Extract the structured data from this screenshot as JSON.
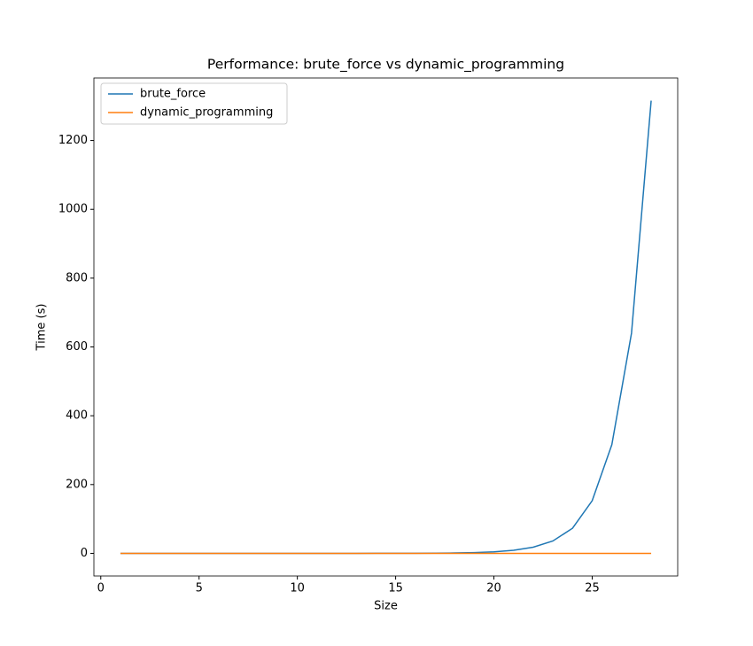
{
  "chart_data": {
    "type": "line",
    "title": "Performance: brute_force vs dynamic_programming",
    "xlabel": "Size",
    "ylabel": "Time (s)",
    "x": [
      1,
      2,
      3,
      4,
      5,
      6,
      7,
      8,
      9,
      10,
      11,
      12,
      13,
      14,
      15,
      16,
      17,
      18,
      19,
      20,
      21,
      22,
      23,
      24,
      25,
      26,
      27,
      28
    ],
    "series": [
      {
        "name": "brute_force",
        "color": "#1f77b4",
        "values": [
          0,
          0,
          0,
          0,
          0,
          0,
          0,
          0,
          0,
          0,
          0.01,
          0.02,
          0.03,
          0.07,
          0.14,
          0.3,
          0.5,
          1.1,
          2.2,
          4.4,
          9,
          18,
          36,
          73,
          153,
          316,
          640,
          1316
        ]
      },
      {
        "name": "dynamic_programming",
        "color": "#ff7f0e",
        "values": [
          0,
          0,
          0,
          0,
          0,
          0,
          0,
          0,
          0,
          0,
          0,
          0,
          0,
          0,
          0,
          0,
          0,
          0,
          0,
          0,
          0,
          0,
          0,
          0,
          0,
          0,
          0,
          0
        ]
      }
    ],
    "xlim": [
      -0.35,
      29.35
    ],
    "xticks": [
      0,
      5,
      10,
      15,
      20,
      25
    ],
    "ylim": [
      -65.8,
      1381.8
    ],
    "yticks": [
      0,
      200,
      400,
      600,
      800,
      1000,
      1200
    ],
    "grid": false,
    "legend": "upper left"
  }
}
